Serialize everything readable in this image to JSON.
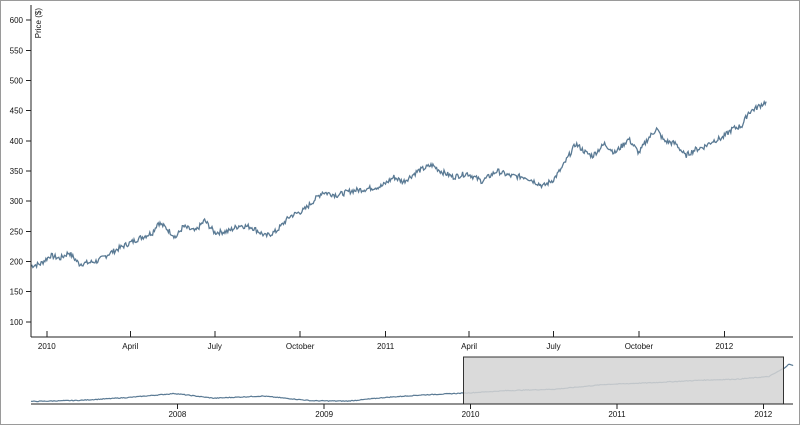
{
  "chart_data": [
    {
      "type": "line",
      "role": "focus",
      "ylabel": "Price ($)",
      "ylim": [
        75,
        625
      ],
      "y_ticks": [
        100,
        150,
        200,
        250,
        300,
        350,
        400,
        450,
        500,
        550,
        600
      ],
      "xlim": [
        "2009-12-15",
        "2012-03-15"
      ],
      "x_ticks": [
        {
          "date": "2010-01-01",
          "label": "2010"
        },
        {
          "date": "2010-04-01",
          "label": "April"
        },
        {
          "date": "2010-07-01",
          "label": "July"
        },
        {
          "date": "2010-10-01",
          "label": "October"
        },
        {
          "date": "2011-01-01",
          "label": "2011"
        },
        {
          "date": "2011-04-01",
          "label": "April"
        },
        {
          "date": "2011-07-01",
          "label": "July"
        },
        {
          "date": "2011-10-01",
          "label": "October"
        },
        {
          "date": "2012-01-01",
          "label": "2012"
        }
      ],
      "series": [
        {
          "color": "#5a7a94",
          "points": [
            [
              "2009-12-15",
              193
            ],
            [
              "2009-12-25",
              196
            ],
            [
              "2010-01-05",
              210
            ],
            [
              "2010-01-15",
              205
            ],
            [
              "2010-01-25",
              215
            ],
            [
              "2010-02-05",
              196
            ],
            [
              "2010-02-15",
              198
            ],
            [
              "2010-02-25",
              201
            ],
            [
              "2010-03-10",
              214
            ],
            [
              "2010-03-25",
              226
            ],
            [
              "2010-04-10",
              238
            ],
            [
              "2010-04-25",
              248
            ],
            [
              "2010-05-01",
              265
            ],
            [
              "2010-05-10",
              255
            ],
            [
              "2010-05-20",
              240
            ],
            [
              "2010-05-28",
              258
            ],
            [
              "2010-06-10",
              250
            ],
            [
              "2010-06-20",
              268
            ],
            [
              "2010-07-01",
              248
            ],
            [
              "2010-07-15",
              250
            ],
            [
              "2010-07-28",
              260
            ],
            [
              "2010-08-10",
              257
            ],
            [
              "2010-08-25",
              242
            ],
            [
              "2010-09-05",
              250
            ],
            [
              "2010-09-20",
              275
            ],
            [
              "2010-10-05",
              285
            ],
            [
              "2010-10-15",
              300
            ],
            [
              "2010-10-25",
              315
            ],
            [
              "2010-11-10",
              310
            ],
            [
              "2010-11-25",
              317
            ],
            [
              "2010-12-10",
              320
            ],
            [
              "2010-12-28",
              325
            ],
            [
              "2011-01-10",
              340
            ],
            [
              "2011-01-20",
              332
            ],
            [
              "2011-02-05",
              350
            ],
            [
              "2011-02-20",
              360
            ],
            [
              "2011-03-01",
              350
            ],
            [
              "2011-03-15",
              340
            ],
            [
              "2011-03-30",
              346
            ],
            [
              "2011-04-15",
              333
            ],
            [
              "2011-05-01",
              350
            ],
            [
              "2011-05-15",
              342
            ],
            [
              "2011-06-01",
              340
            ],
            [
              "2011-06-20",
              325
            ],
            [
              "2011-07-01",
              336
            ],
            [
              "2011-07-10",
              355
            ],
            [
              "2011-07-25",
              395
            ],
            [
              "2011-08-05",
              380
            ],
            [
              "2011-08-12",
              375
            ],
            [
              "2011-08-25",
              395
            ],
            [
              "2011-09-05",
              380
            ],
            [
              "2011-09-20",
              403
            ],
            [
              "2011-10-01",
              380
            ],
            [
              "2011-10-10",
              402
            ],
            [
              "2011-10-20",
              420
            ],
            [
              "2011-10-28",
              400
            ],
            [
              "2011-11-10",
              395
            ],
            [
              "2011-11-20",
              375
            ],
            [
              "2011-11-30",
              385
            ],
            [
              "2011-12-10",
              390
            ],
            [
              "2011-12-20",
              400
            ],
            [
              "2011-12-30",
              405
            ],
            [
              "2012-01-10",
              420
            ],
            [
              "2012-01-20",
              425
            ],
            [
              "2012-01-27",
              447
            ],
            [
              "2012-02-05",
              455
            ],
            [
              "2012-02-15",
              465
            ]
          ]
        }
      ]
    },
    {
      "type": "line",
      "role": "context",
      "xlim": [
        "2007-01-01",
        "2012-03-15"
      ],
      "ylim": [
        50,
        700
      ],
      "x_ticks": [
        {
          "date": "2008-01-01",
          "label": "2008"
        },
        {
          "date": "2009-01-01",
          "label": "2009"
        },
        {
          "date": "2010-01-01",
          "label": "2010"
        },
        {
          "date": "2011-01-01",
          "label": "2011"
        },
        {
          "date": "2012-01-01",
          "label": "2012"
        }
      ],
      "brush_extent": [
        "2009-12-15",
        "2012-02-20"
      ],
      "series": [
        {
          "color": "#5a7a94",
          "points": [
            [
              "2007-01-01",
              85
            ],
            [
              "2007-05-01",
              100
            ],
            [
              "2007-09-01",
              140
            ],
            [
              "2007-12-25",
              195
            ],
            [
              "2008-04-01",
              130
            ],
            [
              "2008-08-01",
              160
            ],
            [
              "2008-12-01",
              95
            ],
            [
              "2009-03-01",
              90
            ],
            [
              "2009-06-01",
              140
            ],
            [
              "2009-09-01",
              175
            ],
            [
              "2009-12-15",
              200
            ],
            [
              "2010-04-01",
              235
            ],
            [
              "2010-08-01",
              255
            ],
            [
              "2010-12-01",
              320
            ],
            [
              "2011-04-01",
              345
            ],
            [
              "2011-08-01",
              380
            ],
            [
              "2011-11-01",
              395
            ],
            [
              "2012-01-15",
              430
            ],
            [
              "2012-02-20",
              540
            ],
            [
              "2012-03-05",
              600
            ],
            [
              "2012-03-15",
              580
            ]
          ]
        }
      ]
    }
  ]
}
